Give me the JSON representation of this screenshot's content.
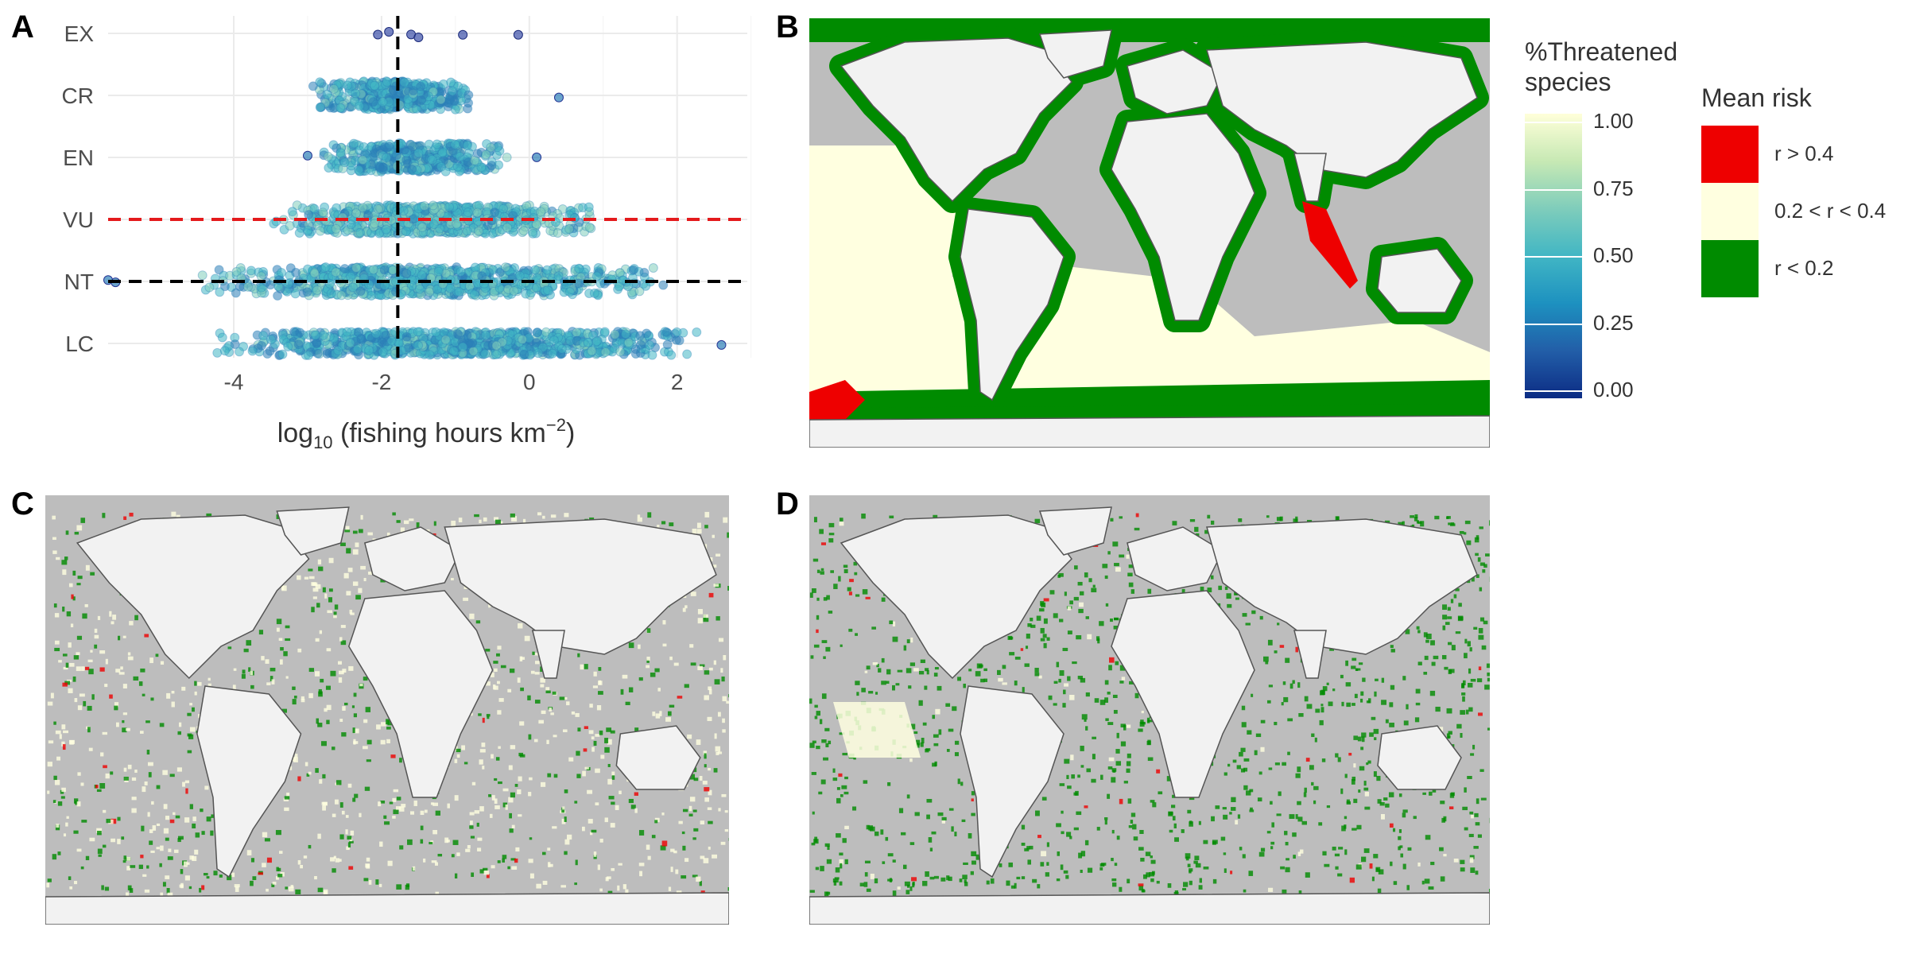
{
  "panels": {
    "a_label": "A",
    "b_label": "B",
    "c_label": "C",
    "d_label": "D"
  },
  "chart_data": {
    "type": "scatter",
    "xlabel": "log10 (fishing hours km−2)",
    "xlabel_parts": {
      "pre": "log",
      "sub": "10",
      "mid": " (fishing hours km",
      "sup": "−2",
      "post": ")"
    },
    "x_ticks": [
      -4,
      -2,
      0,
      2
    ],
    "x_tick_labels": [
      "-4",
      "-2",
      "0",
      "2"
    ],
    "xlim": [
      -5.7,
      2.95
    ],
    "y_categories": [
      "LC",
      "NT",
      "VU",
      "EN",
      "CR",
      "EX"
    ],
    "grid": true,
    "reference_lines": [
      {
        "orientation": "vertical",
        "value": -1.78,
        "color": "#000000",
        "style": "dashed"
      },
      {
        "orientation": "horizontal",
        "category": "VU",
        "color": "#e41a1c",
        "style": "dashed"
      },
      {
        "orientation": "horizontal",
        "category": "NT",
        "color": "#000000",
        "style": "dashed"
      }
    ],
    "series": [
      {
        "category": "EX",
        "x_points": [
          -2.05,
          -1.9,
          -1.6,
          -1.5,
          -0.9,
          -0.15
        ],
        "color_value": 0.2
      },
      {
        "category": "CR",
        "x_range": [
          -2.95,
          -0.7
        ],
        "outliers": [
          0.4
        ],
        "color_value": 0.45
      },
      {
        "category": "EN",
        "x_range": [
          -2.9,
          -0.2
        ],
        "outliers": [
          -3.0,
          0.1
        ],
        "color_value": 0.45
      },
      {
        "category": "VU",
        "x_range": [
          -3.6,
          1.05
        ],
        "color_value": 0.6
      },
      {
        "category": "NT",
        "x_range": [
          -4.5,
          1.9
        ],
        "outliers": [
          -5.6,
          -5.7
        ],
        "color_value": 0.55
      },
      {
        "category": "LC",
        "x_range": [
          -4.3,
          2.5
        ],
        "outliers": [
          2.6
        ],
        "color_value": 0.45
      }
    ]
  },
  "legend_threat": {
    "title_line1": "%Threatened",
    "title_line2": "species",
    "ticks": [
      "1.00",
      "0.75",
      "0.50",
      "0.25",
      "0.00"
    ],
    "colors": [
      "#ffffd9",
      "#c7e9b4",
      "#7fcdbb",
      "#41b6c4",
      "#1d91c0",
      "#225ea8",
      "#0c2c84"
    ]
  },
  "legend_risk": {
    "title": "Mean risk",
    "items": [
      {
        "label": "r > 0.4",
        "color": "#ee0000"
      },
      {
        "label": "0.2 < r < 0.4",
        "color": "#ffffe0"
      },
      {
        "label": "r < 0.2",
        "color": "#008b00"
      }
    ]
  },
  "maps": {
    "ocean_color": "#bdbdbd",
    "land_color": "#f2f2f2",
    "coast_color": "#555555"
  }
}
